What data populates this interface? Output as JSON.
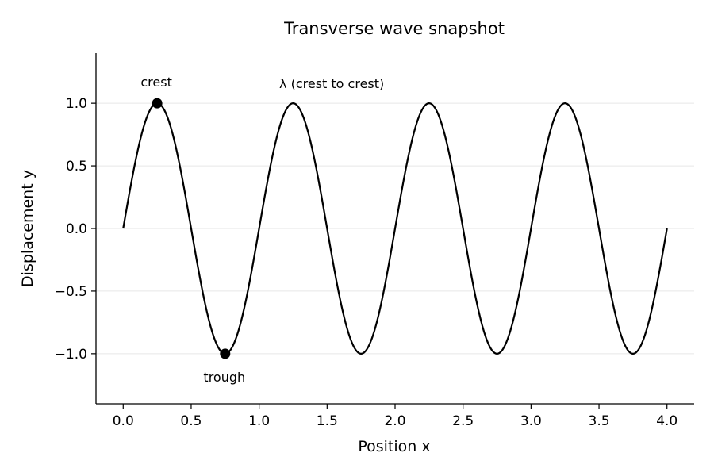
{
  "chart_data": {
    "type": "line",
    "title": "Transverse wave snapshot",
    "xlabel": "Position x",
    "ylabel": "Displacement y",
    "xlim": [
      -0.2,
      4.2
    ],
    "ylim": [
      -1.4,
      1.4
    ],
    "xticks": [
      0.0,
      0.5,
      1.0,
      1.5,
      2.0,
      2.5,
      3.0,
      3.5,
      4.0
    ],
    "xtick_labels": [
      "0.0",
      "0.5",
      "1.0",
      "1.5",
      "2.0",
      "2.5",
      "3.0",
      "3.5",
      "4.0"
    ],
    "yticks": [
      -1.0,
      -0.5,
      0.0,
      0.5,
      1.0
    ],
    "ytick_labels": [
      "−1.0",
      "−0.5",
      "0.0",
      "0.5",
      "1.0"
    ],
    "grid": "horizontal",
    "series": [
      {
        "function": "y = sin(2πx)",
        "amplitude": 1.0,
        "wavelength": 1.0,
        "x_range": [
          0.0,
          4.0
        ],
        "color": "#000000"
      }
    ],
    "points": [
      {
        "label": "crest",
        "x": 0.25,
        "y": 1.0,
        "color": "#000000"
      },
      {
        "label": "trough",
        "x": 0.75,
        "y": -1.0,
        "color": "#000000"
      }
    ],
    "annotations": [
      {
        "text": "crest",
        "x": 0.25,
        "y": 1.0
      },
      {
        "text": "trough",
        "x": 0.75,
        "y": -1.0
      },
      {
        "text": "λ (crest to crest)",
        "x": 1.3,
        "y": 1.0
      }
    ]
  }
}
